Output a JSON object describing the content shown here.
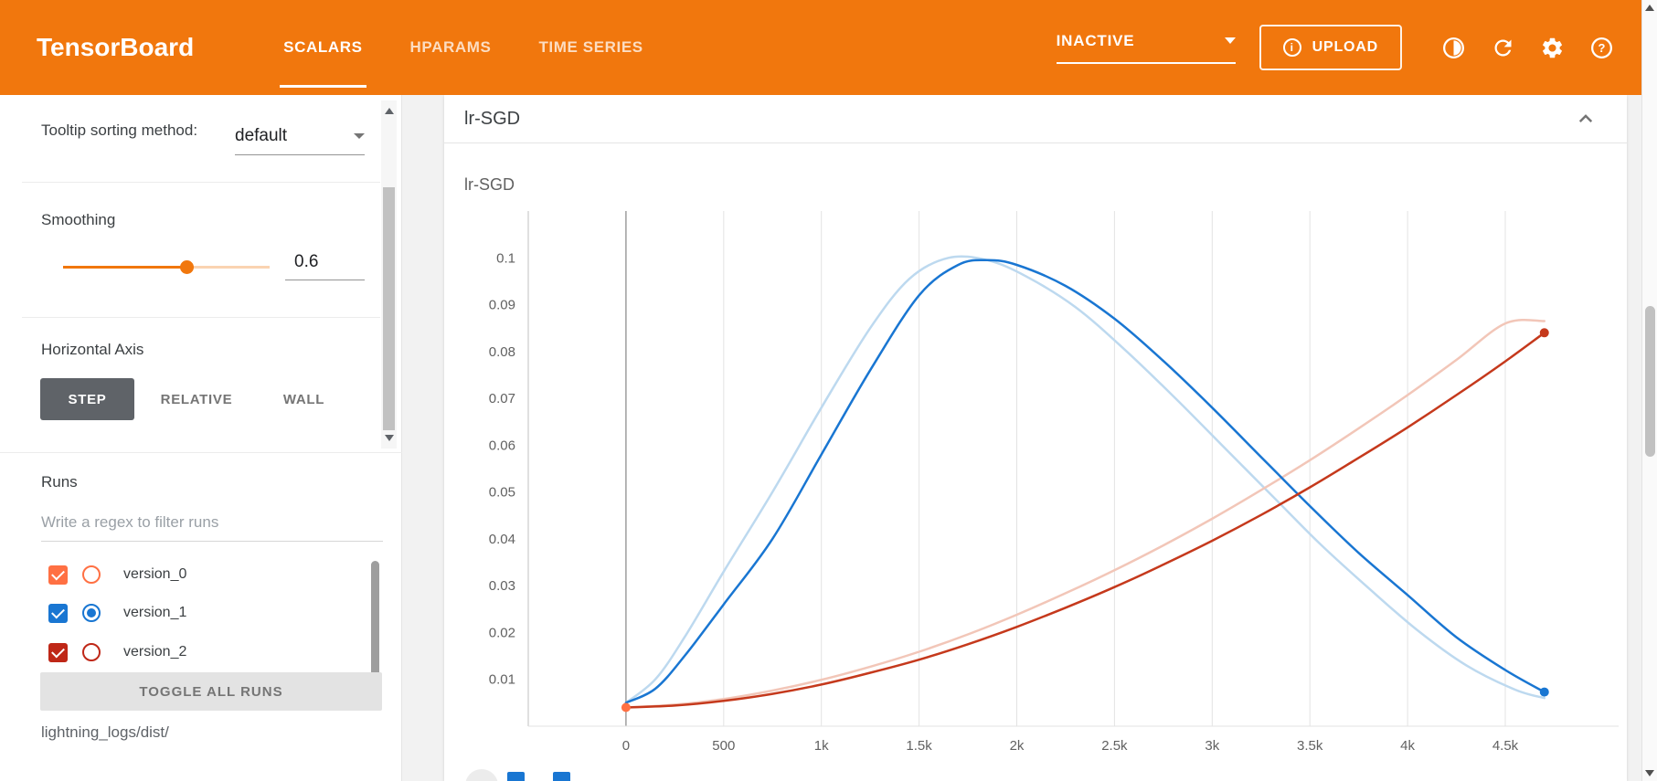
{
  "header": {
    "logo": "TensorBoard",
    "tabs": [
      {
        "label": "SCALARS",
        "active": true
      },
      {
        "label": "HPARAMS",
        "active": false
      },
      {
        "label": "TIME SERIES",
        "active": false
      }
    ],
    "status_dropdown": {
      "value": "INACTIVE"
    },
    "upload_label": "UPLOAD",
    "icons": [
      "info-icon",
      "contrast-icon",
      "refresh-icon",
      "settings-icon",
      "help-icon"
    ],
    "bg_color": "#f1770d"
  },
  "sidebar": {
    "tooltip_sorting": {
      "label": "Tooltip sorting method:",
      "value": "default"
    },
    "smoothing": {
      "label": "Smoothing",
      "value": "0.6",
      "fraction": 0.6
    },
    "horizontal_axis": {
      "label": "Horizontal Axis",
      "options": [
        "STEP",
        "RELATIVE",
        "WALL"
      ],
      "selected": "STEP"
    },
    "runs": {
      "label": "Runs",
      "filter_placeholder": "Write a regex to filter runs",
      "items": [
        {
          "name": "version_0",
          "color": "#ff7043",
          "checked": true,
          "radio_selected": false
        },
        {
          "name": "version_1",
          "color": "#1976d2",
          "checked": true,
          "radio_selected": true
        },
        {
          "name": "version_2",
          "color": "#bf2717",
          "checked": true,
          "radio_selected": false
        }
      ],
      "toggle_all_label": "TOGGLE ALL RUNS",
      "log_dir": "lightning_logs/dist/"
    }
  },
  "main": {
    "group_title": "lr-SGD"
  },
  "chart_data": {
    "type": "line",
    "title": "lr-SGD",
    "xlabel": "",
    "ylabel": "",
    "xlim": [
      -500,
      5080
    ],
    "ylim": [
      0,
      0.11
    ],
    "grid": "vertical",
    "legend_position": "none",
    "x_ticks": [
      {
        "v": 0,
        "label": "0"
      },
      {
        "v": 500,
        "label": "500"
      },
      {
        "v": 1000,
        "label": "1k"
      },
      {
        "v": 1500,
        "label": "1.5k"
      },
      {
        "v": 2000,
        "label": "2k"
      },
      {
        "v": 2500,
        "label": "2.5k"
      },
      {
        "v": 3000,
        "label": "3k"
      },
      {
        "v": 3500,
        "label": "3.5k"
      },
      {
        "v": 4000,
        "label": "4k"
      },
      {
        "v": 4500,
        "label": "4.5k"
      }
    ],
    "y_ticks": [
      {
        "v": 0.01,
        "label": "0.01"
      },
      {
        "v": 0.02,
        "label": "0.02"
      },
      {
        "v": 0.03,
        "label": "0.03"
      },
      {
        "v": 0.04,
        "label": "0.04"
      },
      {
        "v": 0.05,
        "label": "0.05"
      },
      {
        "v": 0.06,
        "label": "0.06"
      },
      {
        "v": 0.07,
        "label": "0.07"
      },
      {
        "v": 0.08,
        "label": "0.08"
      },
      {
        "v": 0.09,
        "label": "0.09"
      },
      {
        "v": 0.1,
        "label": "0.1"
      }
    ],
    "series": [
      {
        "name": "version_1 (unsmoothed)",
        "color": "#bdd9ef",
        "width": 2.5,
        "marker": false,
        "points": [
          [
            0,
            0.005
          ],
          [
            150,
            0.01
          ],
          [
            300,
            0.019
          ],
          [
            500,
            0.033
          ],
          [
            750,
            0.05
          ],
          [
            1000,
            0.068
          ],
          [
            1250,
            0.085
          ],
          [
            1450,
            0.0955
          ],
          [
            1650,
            0.1
          ],
          [
            1850,
            0.0995
          ],
          [
            2050,
            0.096
          ],
          [
            2300,
            0.0895
          ],
          [
            2550,
            0.0805
          ],
          [
            2800,
            0.0705
          ],
          [
            3050,
            0.06
          ],
          [
            3300,
            0.0495
          ],
          [
            3550,
            0.039
          ],
          [
            3800,
            0.0295
          ],
          [
            4050,
            0.0205
          ],
          [
            4300,
            0.013
          ],
          [
            4550,
            0.0078
          ],
          [
            4700,
            0.006
          ]
        ]
      },
      {
        "name": "version_2 (unsmoothed)",
        "color": "#f2c6b8",
        "width": 2.5,
        "marker": false,
        "points": [
          [
            0,
            0.004
          ],
          [
            250,
            0.0046
          ],
          [
            500,
            0.0058
          ],
          [
            750,
            0.0076
          ],
          [
            1000,
            0.0099
          ],
          [
            1250,
            0.0127
          ],
          [
            1500,
            0.0159
          ],
          [
            1750,
            0.0196
          ],
          [
            2000,
            0.0238
          ],
          [
            2250,
            0.0284
          ],
          [
            2500,
            0.0333
          ],
          [
            2750,
            0.0386
          ],
          [
            3000,
            0.0443
          ],
          [
            3250,
            0.0504
          ],
          [
            3500,
            0.0568
          ],
          [
            3750,
            0.0636
          ],
          [
            4000,
            0.0707
          ],
          [
            4250,
            0.0782
          ],
          [
            4500,
            0.086
          ],
          [
            4700,
            0.0865
          ]
        ]
      },
      {
        "name": "version_1",
        "color": "#1976d2",
        "width": 2.5,
        "marker": true,
        "points": [
          [
            0,
            0.005
          ],
          [
            150,
            0.008
          ],
          [
            300,
            0.015
          ],
          [
            500,
            0.026
          ],
          [
            750,
            0.04
          ],
          [
            1000,
            0.058
          ],
          [
            1250,
            0.076
          ],
          [
            1500,
            0.092
          ],
          [
            1700,
            0.0985
          ],
          [
            1850,
            0.0995
          ],
          [
            2000,
            0.0985
          ],
          [
            2250,
            0.094
          ],
          [
            2500,
            0.087
          ],
          [
            2750,
            0.078
          ],
          [
            3000,
            0.068
          ],
          [
            3250,
            0.0575
          ],
          [
            3500,
            0.047
          ],
          [
            3750,
            0.037
          ],
          [
            4000,
            0.028
          ],
          [
            4250,
            0.019
          ],
          [
            4500,
            0.012
          ],
          [
            4700,
            0.0073
          ]
        ]
      },
      {
        "name": "version_2",
        "color": "#c5391c",
        "width": 2.5,
        "marker": true,
        "points": [
          [
            0,
            0.004
          ],
          [
            250,
            0.0044
          ],
          [
            500,
            0.0054
          ],
          [
            750,
            0.0069
          ],
          [
            1000,
            0.0089
          ],
          [
            1250,
            0.0114
          ],
          [
            1500,
            0.0142
          ],
          [
            1750,
            0.0175
          ],
          [
            2000,
            0.0212
          ],
          [
            2250,
            0.0253
          ],
          [
            2500,
            0.0297
          ],
          [
            2750,
            0.0345
          ],
          [
            3000,
            0.0396
          ],
          [
            3250,
            0.0451
          ],
          [
            3500,
            0.051
          ],
          [
            3750,
            0.0573
          ],
          [
            4000,
            0.0638
          ],
          [
            4250,
            0.0707
          ],
          [
            4500,
            0.0779
          ],
          [
            4700,
            0.084
          ]
        ]
      },
      {
        "name": "version_0",
        "color": "#ff7043",
        "width": 2.5,
        "marker": true,
        "points": [
          [
            0,
            0.004
          ]
        ]
      }
    ]
  }
}
